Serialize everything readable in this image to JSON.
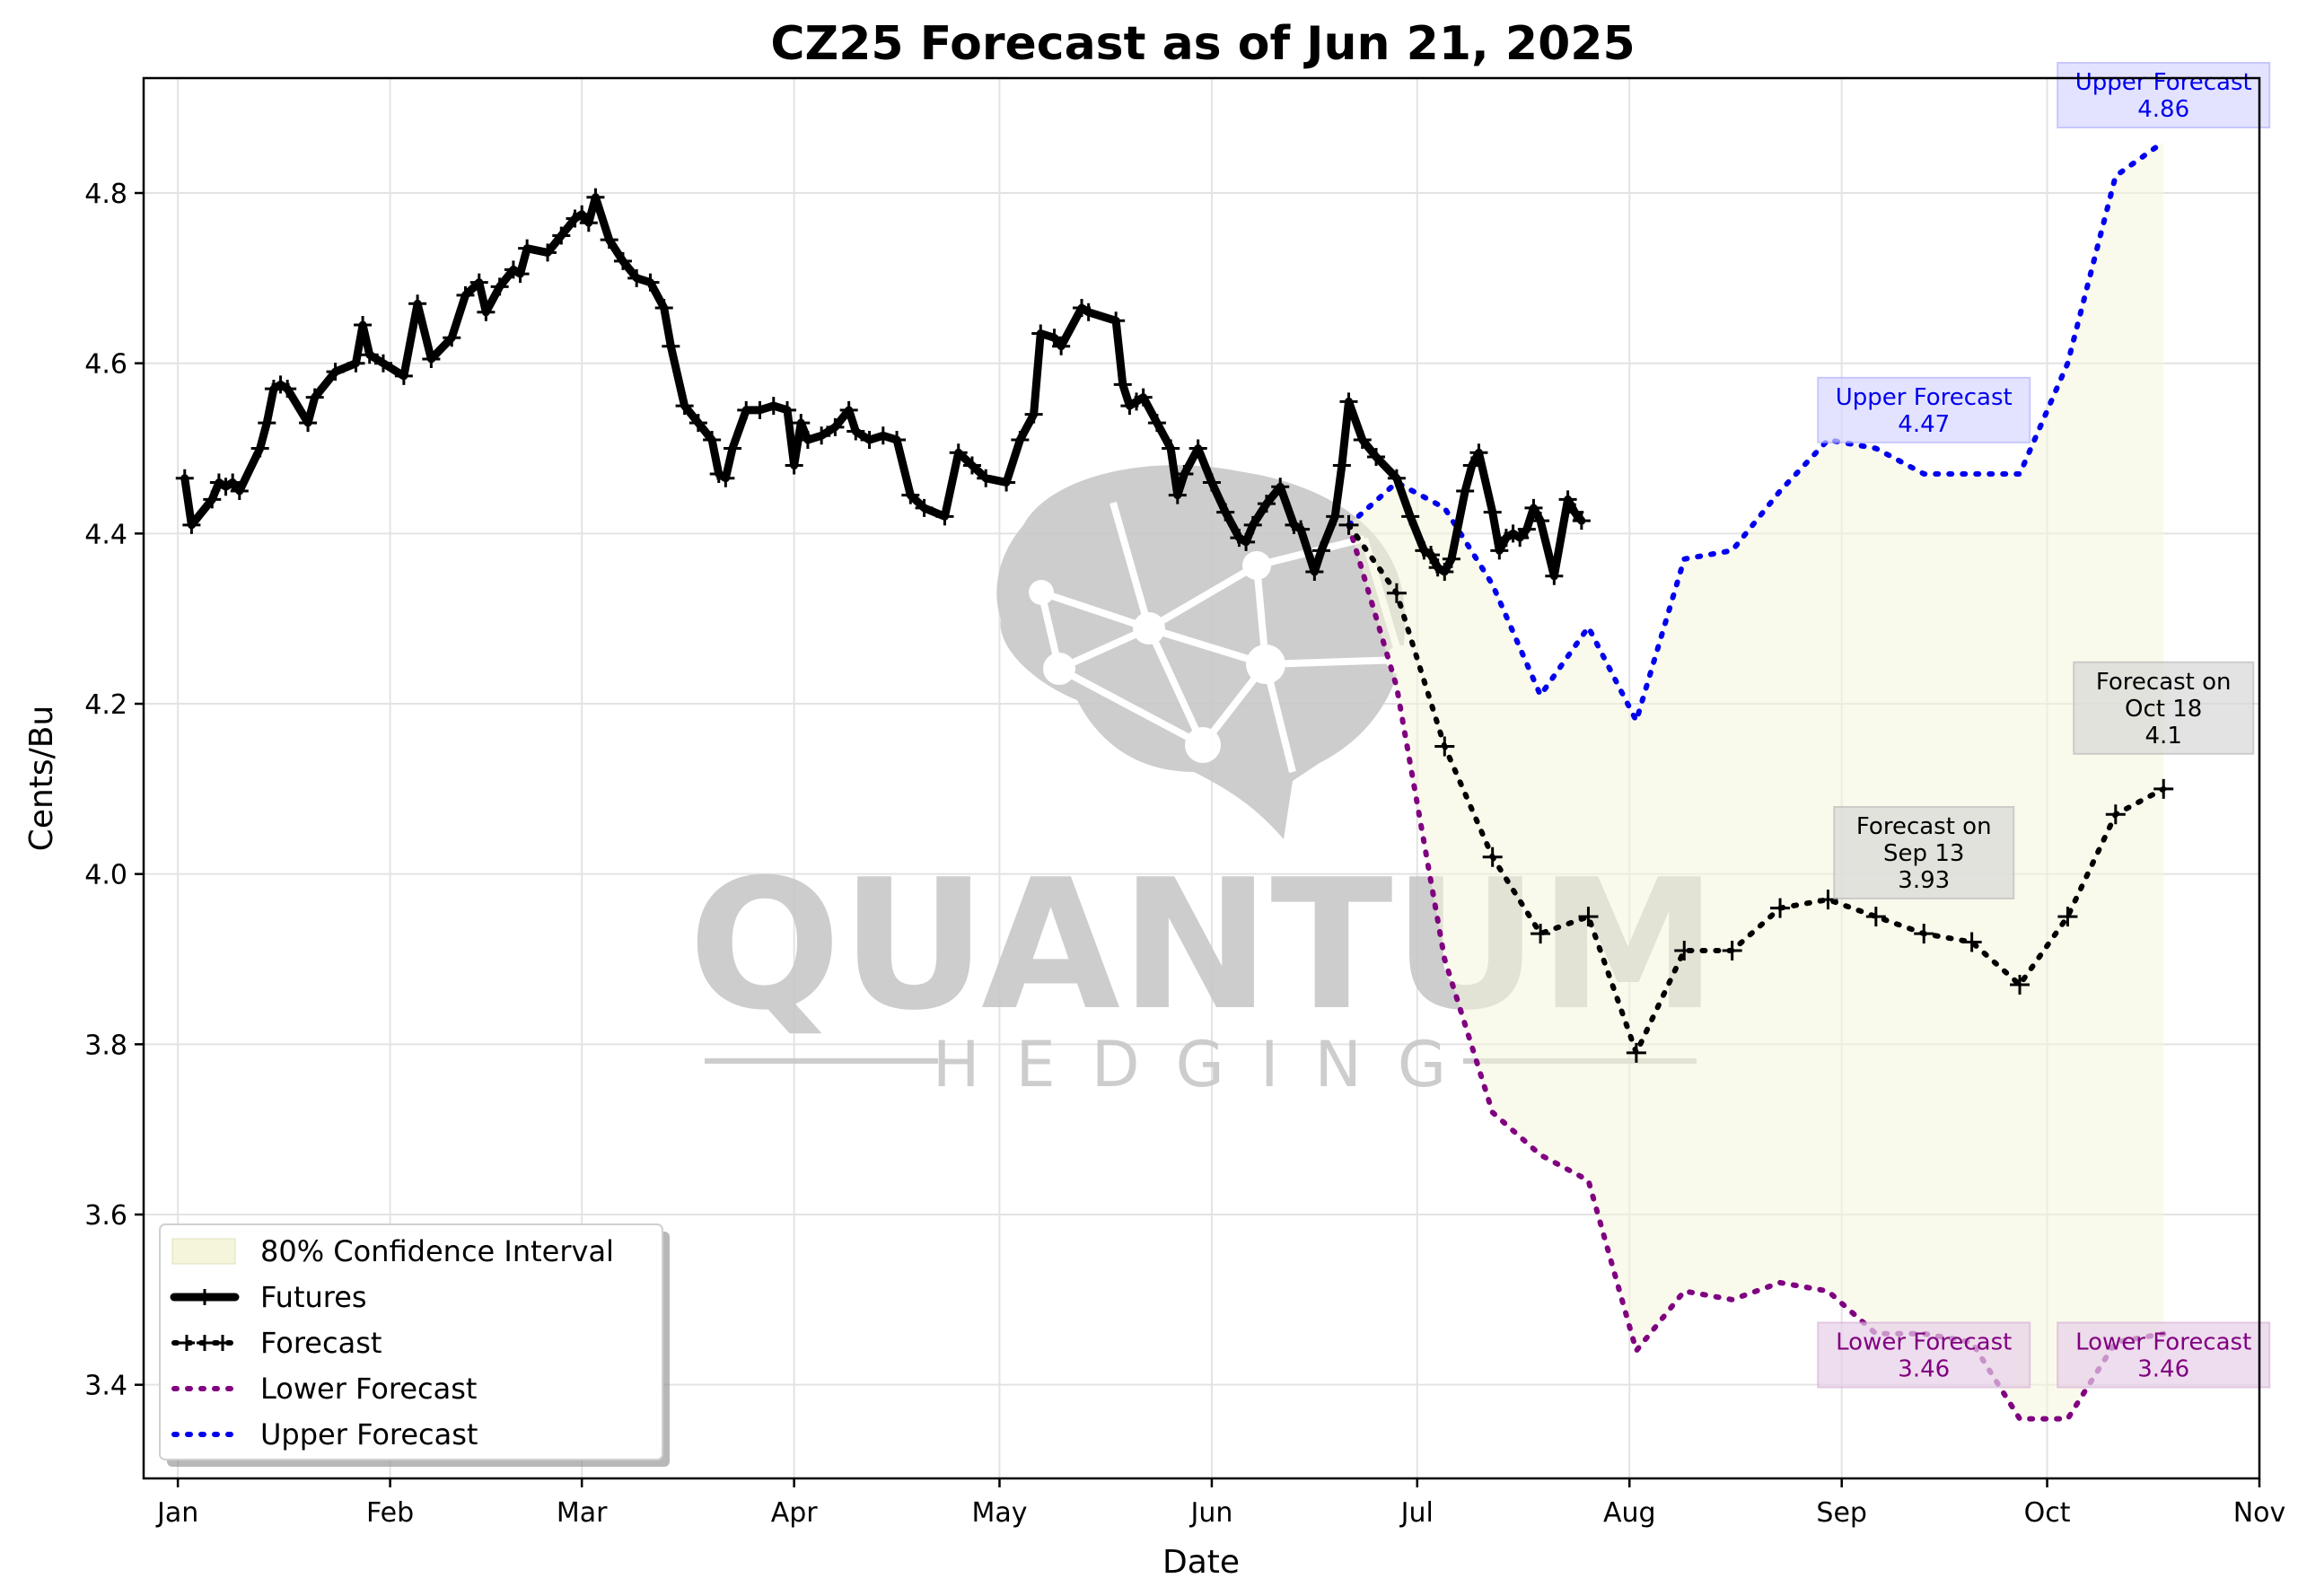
{
  "watermark": {
    "big": "QUANTUM",
    "small": "HEDGING"
  },
  "chart_data": {
    "type": "line",
    "title": "CZ25 Forecast as of Jun 21, 2025",
    "xlabel": "Date",
    "ylabel": "Cents/Bu",
    "xlim": [
      "2024-12-27",
      "2025-11-01"
    ],
    "ylim": [
      3.29,
      4.935
    ],
    "x_ticks": [
      {
        "date": "2025-01-01",
        "label": "Jan"
      },
      {
        "date": "2025-02-01",
        "label": "Feb"
      },
      {
        "date": "2025-03-01",
        "label": "Mar"
      },
      {
        "date": "2025-04-01",
        "label": "Apr"
      },
      {
        "date": "2025-05-01",
        "label": "May"
      },
      {
        "date": "2025-06-01",
        "label": "Jun"
      },
      {
        "date": "2025-07-01",
        "label": "Jul"
      },
      {
        "date": "2025-08-01",
        "label": "Aug"
      },
      {
        "date": "2025-09-01",
        "label": "Sep"
      },
      {
        "date": "2025-10-01",
        "label": "Oct"
      },
      {
        "date": "2025-11-01",
        "label": "Nov"
      }
    ],
    "y_ticks": [
      {
        "value": 3.4,
        "label": "3.4"
      },
      {
        "value": 3.6,
        "label": "3.6"
      },
      {
        "value": 3.8,
        "label": "3.8"
      },
      {
        "value": 4.0,
        "label": "4.0"
      },
      {
        "value": 4.2,
        "label": "4.2"
      },
      {
        "value": 4.4,
        "label": "4.4"
      },
      {
        "value": 4.6,
        "label": "4.6"
      },
      {
        "value": 4.8,
        "label": "4.8"
      }
    ],
    "grid": true,
    "legend_position": "lower-left",
    "colors": {
      "futures": "#000000",
      "forecast": "#000000",
      "lower": "#800080",
      "upper": "#0000ee",
      "band": "#f5f5dc",
      "upper_box": "#d8d8ff",
      "lower_box": "#e8d0e8",
      "note_box": "#d8d8d8"
    },
    "legend": [
      {
        "key": "band",
        "label": "80% Confidence Interval"
      },
      {
        "key": "futures",
        "label": "Futures"
      },
      {
        "key": "forecast",
        "label": "Forecast"
      },
      {
        "key": "lower",
        "label": "Lower Forecast"
      },
      {
        "key": "upper",
        "label": "Upper Forecast"
      }
    ],
    "series": [
      {
        "name": "Futures",
        "points": [
          [
            "2025-01-02",
            4.465
          ],
          [
            "2025-01-03",
            4.41
          ],
          [
            "2025-01-06",
            4.44
          ],
          [
            "2025-01-07",
            4.46
          ],
          [
            "2025-01-08",
            4.455
          ],
          [
            "2025-01-09",
            4.46
          ],
          [
            "2025-01-10",
            4.45
          ],
          [
            "2025-01-13",
            4.5
          ],
          [
            "2025-01-14",
            4.53
          ],
          [
            "2025-01-15",
            4.57
          ],
          [
            "2025-01-16",
            4.575
          ],
          [
            "2025-01-17",
            4.57
          ],
          [
            "2025-01-20",
            4.53
          ],
          [
            "2025-01-21",
            4.56
          ],
          [
            "2025-01-24",
            4.59
          ],
          [
            "2025-01-27",
            4.6
          ],
          [
            "2025-01-28",
            4.645
          ],
          [
            "2025-01-29",
            4.61
          ],
          [
            "2025-01-31",
            4.6
          ],
          [
            "2025-02-03",
            4.585
          ],
          [
            "2025-02-05",
            4.67
          ],
          [
            "2025-02-07",
            4.605
          ],
          [
            "2025-02-10",
            4.63
          ],
          [
            "2025-02-12",
            4.68
          ],
          [
            "2025-02-14",
            4.695
          ],
          [
            "2025-02-15",
            4.66
          ],
          [
            "2025-02-17",
            4.69
          ],
          [
            "2025-02-19",
            4.71
          ],
          [
            "2025-02-20",
            4.705
          ],
          [
            "2025-02-21",
            4.735
          ],
          [
            "2025-02-24",
            4.73
          ],
          [
            "2025-02-26",
            4.75
          ],
          [
            "2025-02-28",
            4.77
          ],
          [
            "2025-03-01",
            4.775
          ],
          [
            "2025-03-02",
            4.765
          ],
          [
            "2025-03-03",
            4.795
          ],
          [
            "2025-03-05",
            4.745
          ],
          [
            "2025-03-07",
            4.72
          ],
          [
            "2025-03-09",
            4.7
          ],
          [
            "2025-03-11",
            4.695
          ],
          [
            "2025-03-13",
            4.665
          ],
          [
            "2025-03-14",
            4.62
          ],
          [
            "2025-03-16",
            4.55
          ],
          [
            "2025-03-18",
            4.53
          ],
          [
            "2025-03-20",
            4.51
          ],
          [
            "2025-03-21",
            4.47
          ],
          [
            "2025-03-22",
            4.465
          ],
          [
            "2025-03-23",
            4.5
          ],
          [
            "2025-03-25",
            4.545
          ],
          [
            "2025-03-27",
            4.545
          ],
          [
            "2025-03-29",
            4.55
          ],
          [
            "2025-03-31",
            4.545
          ],
          [
            "2025-04-01",
            4.48
          ],
          [
            "2025-04-02",
            4.53
          ],
          [
            "2025-04-03",
            4.51
          ],
          [
            "2025-04-05",
            4.515
          ],
          [
            "2025-04-07",
            4.525
          ],
          [
            "2025-04-09",
            4.545
          ],
          [
            "2025-04-10",
            4.52
          ],
          [
            "2025-04-12",
            4.51
          ],
          [
            "2025-04-14",
            4.515
          ],
          [
            "2025-04-16",
            4.51
          ],
          [
            "2025-04-18",
            4.445
          ],
          [
            "2025-04-20",
            4.43
          ],
          [
            "2025-04-23",
            4.42
          ],
          [
            "2025-04-25",
            4.495
          ],
          [
            "2025-04-27",
            4.48
          ],
          [
            "2025-04-29",
            4.465
          ],
          [
            "2025-05-02",
            4.46
          ],
          [
            "2025-05-04",
            4.51
          ],
          [
            "2025-05-06",
            4.54
          ],
          [
            "2025-05-07",
            4.635
          ],
          [
            "2025-05-09",
            4.63
          ],
          [
            "2025-05-10",
            4.62
          ],
          [
            "2025-05-13",
            4.665
          ],
          [
            "2025-05-14",
            4.66
          ],
          [
            "2025-05-18",
            4.65
          ],
          [
            "2025-05-19",
            4.575
          ],
          [
            "2025-05-20",
            4.55
          ],
          [
            "2025-05-21",
            4.555
          ],
          [
            "2025-05-22",
            4.56
          ],
          [
            "2025-05-24",
            4.53
          ],
          [
            "2025-05-26",
            4.5
          ],
          [
            "2025-05-27",
            4.445
          ],
          [
            "2025-05-28",
            4.47
          ],
          [
            "2025-05-30",
            4.5
          ],
          [
            "2025-06-01",
            4.46
          ],
          [
            "2025-06-03",
            4.425
          ],
          [
            "2025-06-05",
            4.395
          ],
          [
            "2025-06-06",
            4.39
          ],
          [
            "2025-06-07",
            4.41
          ],
          [
            "2025-06-09",
            4.435
          ],
          [
            "2025-06-11",
            4.455
          ],
          [
            "2025-06-13",
            4.41
          ],
          [
            "2025-06-14",
            4.405
          ],
          [
            "2025-06-16",
            4.355
          ],
          [
            "2025-06-17",
            4.38
          ],
          [
            "2025-06-19",
            4.42
          ],
          [
            "2025-06-20",
            4.48
          ],
          [
            "2025-06-21",
            4.555
          ],
          [
            "2025-06-23",
            4.51
          ],
          [
            "2025-06-25",
            4.49
          ],
          [
            "2025-06-28",
            4.465
          ],
          [
            "2025-06-30",
            4.42
          ],
          [
            "2025-07-02",
            4.38
          ],
          [
            "2025-07-03",
            4.375
          ],
          [
            "2025-07-04",
            4.36
          ],
          [
            "2025-07-05",
            4.355
          ],
          [
            "2025-07-06",
            4.37
          ],
          [
            "2025-07-08",
            4.45
          ],
          [
            "2025-07-09",
            4.48
          ],
          [
            "2025-07-10",
            4.495
          ],
          [
            "2025-07-12",
            4.425
          ],
          [
            "2025-07-13",
            4.38
          ],
          [
            "2025-07-14",
            4.395
          ],
          [
            "2025-07-15",
            4.4
          ],
          [
            "2025-07-16",
            4.395
          ],
          [
            "2025-07-17",
            4.405
          ],
          [
            "2025-07-18",
            4.43
          ],
          [
            "2025-07-19",
            4.415
          ],
          [
            "2025-07-21",
            4.35
          ],
          [
            "2025-07-23",
            4.44
          ],
          [
            "2025-07-24",
            4.425
          ],
          [
            "2025-07-25",
            4.415
          ]
        ]
      },
      {
        "name": "Forecast",
        "points": [
          [
            "2025-06-21",
            4.41
          ],
          [
            "2025-06-28",
            4.33
          ],
          [
            "2025-07-05",
            4.15
          ],
          [
            "2025-07-12",
            4.02
          ],
          [
            "2025-07-19",
            3.93
          ],
          [
            "2025-07-26",
            3.95
          ],
          [
            "2025-08-02",
            3.79
          ],
          [
            "2025-08-09",
            3.91
          ],
          [
            "2025-08-16",
            3.91
          ],
          [
            "2025-08-23",
            3.96
          ],
          [
            "2025-08-30",
            3.97
          ],
          [
            "2025-09-06",
            3.95
          ],
          [
            "2025-09-13",
            3.93
          ],
          [
            "2025-09-20",
            3.92
          ],
          [
            "2025-09-27",
            3.87
          ],
          [
            "2025-10-04",
            3.95
          ],
          [
            "2025-10-11",
            4.07
          ],
          [
            "2025-10-18",
            4.1
          ]
        ]
      },
      {
        "name": "Lower Forecast",
        "points": [
          [
            "2025-06-21",
            4.41
          ],
          [
            "2025-06-28",
            4.22
          ],
          [
            "2025-07-05",
            3.9
          ],
          [
            "2025-07-12",
            3.72
          ],
          [
            "2025-07-19",
            3.67
          ],
          [
            "2025-07-26",
            3.64
          ],
          [
            "2025-08-02",
            3.44
          ],
          [
            "2025-08-09",
            3.51
          ],
          [
            "2025-08-16",
            3.5
          ],
          [
            "2025-08-23",
            3.52
          ],
          [
            "2025-08-30",
            3.51
          ],
          [
            "2025-09-06",
            3.46
          ],
          [
            "2025-09-13",
            3.46
          ],
          [
            "2025-09-20",
            3.45
          ],
          [
            "2025-09-27",
            3.36
          ],
          [
            "2025-10-04",
            3.36
          ],
          [
            "2025-10-11",
            3.45
          ],
          [
            "2025-10-18",
            3.46
          ]
        ]
      },
      {
        "name": "Upper Forecast",
        "points": [
          [
            "2025-06-21",
            4.41
          ],
          [
            "2025-06-28",
            4.46
          ],
          [
            "2025-07-05",
            4.43
          ],
          [
            "2025-07-12",
            4.34
          ],
          [
            "2025-07-19",
            4.21
          ],
          [
            "2025-07-26",
            4.29
          ],
          [
            "2025-08-02",
            4.18
          ],
          [
            "2025-08-09",
            4.37
          ],
          [
            "2025-08-16",
            4.38
          ],
          [
            "2025-08-23",
            4.45
          ],
          [
            "2025-08-30",
            4.51
          ],
          [
            "2025-09-06",
            4.5
          ],
          [
            "2025-09-13",
            4.47
          ],
          [
            "2025-09-20",
            4.47
          ],
          [
            "2025-09-27",
            4.47
          ],
          [
            "2025-10-04",
            4.6
          ],
          [
            "2025-10-11",
            4.82
          ],
          [
            "2025-10-18",
            4.86
          ]
        ]
      }
    ],
    "annotations": [
      {
        "kind": "upper",
        "date": "2025-10-18",
        "value": 4.915,
        "lines": [
          "Upper Forecast",
          "4.86"
        ]
      },
      {
        "kind": "upper",
        "date": "2025-09-13",
        "value": 4.545,
        "lines": [
          "Upper Forecast",
          "4.47"
        ]
      },
      {
        "kind": "lower",
        "date": "2025-09-13",
        "value": 3.435,
        "lines": [
          "Lower Forecast",
          "3.46"
        ]
      },
      {
        "kind": "lower",
        "date": "2025-10-18",
        "value": 3.435,
        "lines": [
          "Lower Forecast",
          "3.46"
        ]
      },
      {
        "kind": "note",
        "date": "2025-10-18",
        "value": 4.195,
        "lines": [
          "Forecast on",
          "Oct 18",
          "4.1"
        ]
      },
      {
        "kind": "note",
        "date": "2025-09-13",
        "value": 4.025,
        "lines": [
          "Forecast on",
          "Sep 13",
          "3.93"
        ]
      }
    ]
  }
}
